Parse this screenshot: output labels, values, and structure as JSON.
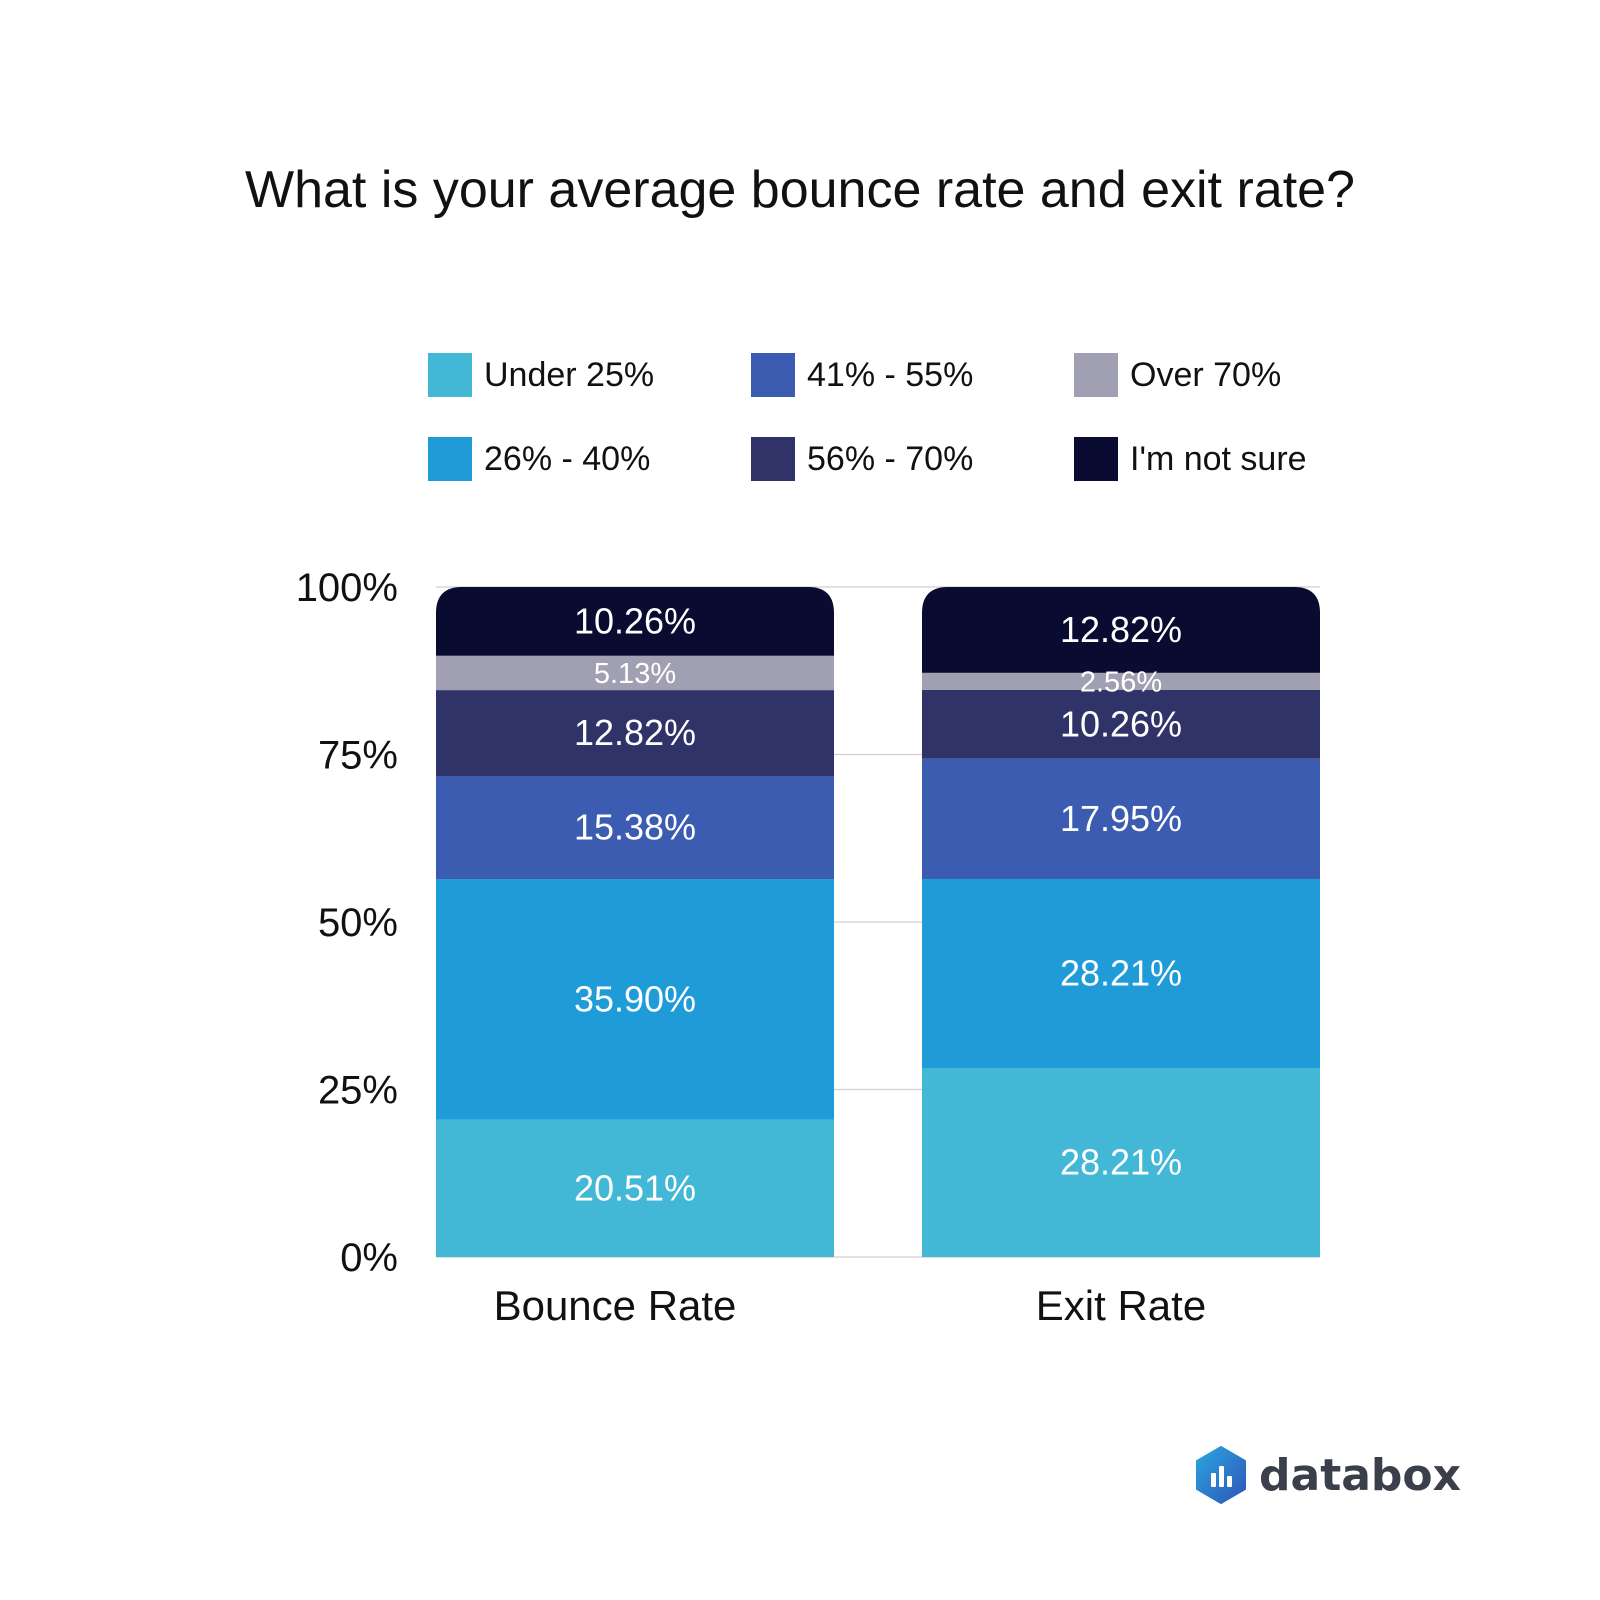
{
  "chart_data": {
    "type": "bar",
    "stacked": true,
    "title": "What is your average bounce rate and exit rate?",
    "categories": [
      "Bounce Rate",
      "Exit Rate"
    ],
    "ylim": [
      0,
      100
    ],
    "yticks": [
      "0%",
      "25%",
      "50%",
      "75%",
      "100%"
    ],
    "ytick_values": [
      0,
      25,
      50,
      75,
      100
    ],
    "grid": true,
    "legend_position": "top",
    "series": [
      {
        "name": "Under 25%",
        "color": "#42b8d6",
        "values": [
          20.51,
          28.21
        ],
        "labels": [
          "20.51%",
          "28.21%"
        ]
      },
      {
        "name": "26% - 40%",
        "color": "#1f9bd7",
        "values": [
          35.9,
          28.21
        ],
        "labels": [
          "35.90%",
          "28.21%"
        ]
      },
      {
        "name": "41% - 55%",
        "color": "#3b5cb0",
        "values": [
          15.38,
          17.95
        ],
        "labels": [
          "15.38%",
          "17.95%"
        ]
      },
      {
        "name": "56% - 70%",
        "color": "#2f3368",
        "values": [
          12.82,
          10.26
        ],
        "labels": [
          "12.82%",
          "10.26%"
        ]
      },
      {
        "name": "Over 70%",
        "color": "#a0a0b2",
        "values": [
          5.13,
          2.56
        ],
        "labels": [
          "5.13%",
          "2.56%"
        ]
      },
      {
        "name": "I'm not sure",
        "color": "#090b30",
        "values": [
          10.26,
          12.82
        ],
        "labels": [
          "10.26%",
          "12.82%"
        ]
      }
    ]
  },
  "logo": {
    "text": "databox"
  }
}
